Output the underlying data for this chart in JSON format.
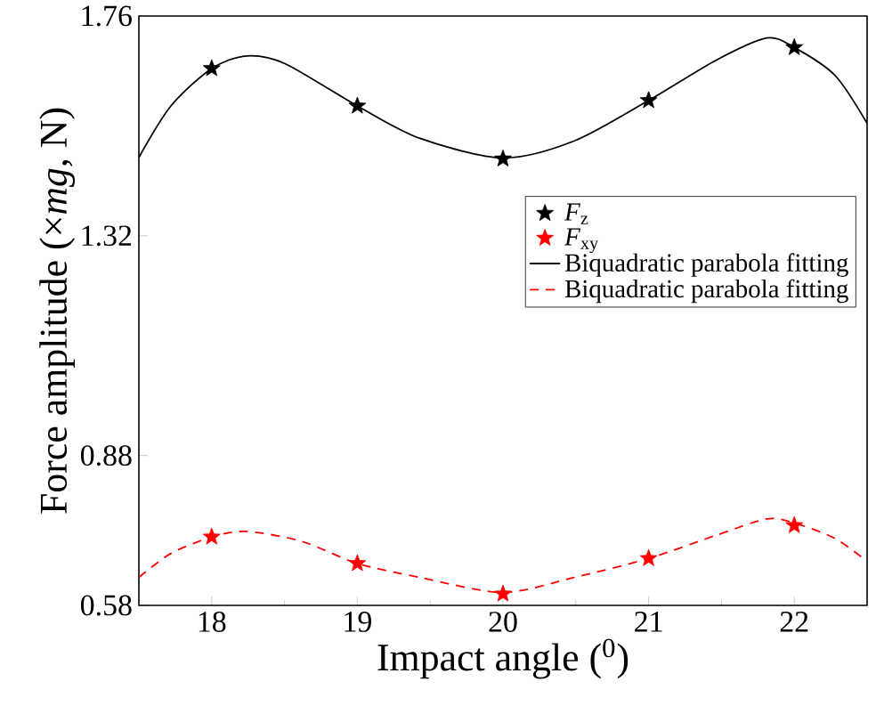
{
  "chart_data": {
    "type": "scatter",
    "xlabel": "Impact angle ($^{0}$)",
    "ylabel": "Force amplitude (×*mg*, N)",
    "xlim": [
      17.5,
      22.5
    ],
    "xticks": [
      18,
      19,
      20,
      21,
      22
    ],
    "ylim": [
      0.58,
      1.76
    ],
    "yticks": [
      0.58,
      0.88,
      1.32,
      1.76
    ],
    "legend": "right",
    "grid": false,
    "series": [
      {
        "name": "*F*$_{z}$",
        "marker": "star",
        "color": "#000000",
        "x": [
          18,
          19,
          20,
          21,
          22
        ],
        "values": [
          1.655,
          1.58,
          1.474,
          1.591,
          1.697
        ]
      },
      {
        "name": "*F*$_{xy}$",
        "marker": "star",
        "color": "#ff0000",
        "x": [
          18,
          19,
          20,
          21,
          22
        ],
        "values": [
          0.717,
          0.664,
          0.603,
          0.674,
          0.74
        ]
      },
      {
        "name": "Biquadratic parabola fitting",
        "type": "line",
        "line_style": "solid",
        "color": "#000000",
        "x": [
          17.5,
          17.72,
          18,
          18.24,
          18.5,
          19,
          19.43,
          20,
          20.49,
          21,
          21.46,
          21.81,
          22,
          22.28,
          22.5
        ],
        "values": [
          1.477,
          1.58,
          1.655,
          1.68,
          1.665,
          1.58,
          1.515,
          1.476,
          1.51,
          1.591,
          1.671,
          1.716,
          1.697,
          1.641,
          1.545
        ]
      },
      {
        "name": "Biquadratic parabola fitting",
        "type": "line",
        "line_style": "dashed",
        "color": "#ff0000",
        "x": [
          17.5,
          17.72,
          18,
          18.24,
          18.62,
          19,
          19.43,
          20,
          20.49,
          21,
          21.46,
          21.81,
          22,
          22.28,
          22.5
        ],
        "values": [
          0.636,
          0.684,
          0.717,
          0.728,
          0.708,
          0.664,
          0.636,
          0.606,
          0.636,
          0.674,
          0.72,
          0.753,
          0.745,
          0.714,
          0.668
        ]
      }
    ]
  }
}
